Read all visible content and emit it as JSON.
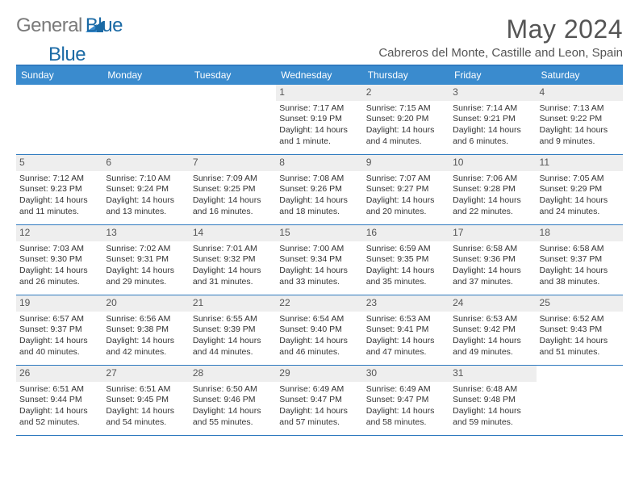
{
  "brand": {
    "part1": "General",
    "part2": "Blue"
  },
  "title": "May 2024",
  "location": "Cabreros del Monte, Castille and Leon, Spain",
  "colors": {
    "headerBar": "#3a8bce",
    "accent": "#2f7abf",
    "dayNumBg": "#eeeeee",
    "logoGray": "#7a7a7a",
    "logoBlue": "#1b6aa5"
  },
  "weekdays": [
    "Sunday",
    "Monday",
    "Tuesday",
    "Wednesday",
    "Thursday",
    "Friday",
    "Saturday"
  ],
  "weeks": [
    [
      {
        "n": "",
        "sr": "",
        "ss": "",
        "dl": ""
      },
      {
        "n": "",
        "sr": "",
        "ss": "",
        "dl": ""
      },
      {
        "n": "",
        "sr": "",
        "ss": "",
        "dl": ""
      },
      {
        "n": "1",
        "sr": "Sunrise: 7:17 AM",
        "ss": "Sunset: 9:19 PM",
        "dl": "Daylight: 14 hours and 1 minute."
      },
      {
        "n": "2",
        "sr": "Sunrise: 7:15 AM",
        "ss": "Sunset: 9:20 PM",
        "dl": "Daylight: 14 hours and 4 minutes."
      },
      {
        "n": "3",
        "sr": "Sunrise: 7:14 AM",
        "ss": "Sunset: 9:21 PM",
        "dl": "Daylight: 14 hours and 6 minutes."
      },
      {
        "n": "4",
        "sr": "Sunrise: 7:13 AM",
        "ss": "Sunset: 9:22 PM",
        "dl": "Daylight: 14 hours and 9 minutes."
      }
    ],
    [
      {
        "n": "5",
        "sr": "Sunrise: 7:12 AM",
        "ss": "Sunset: 9:23 PM",
        "dl": "Daylight: 14 hours and 11 minutes."
      },
      {
        "n": "6",
        "sr": "Sunrise: 7:10 AM",
        "ss": "Sunset: 9:24 PM",
        "dl": "Daylight: 14 hours and 13 minutes."
      },
      {
        "n": "7",
        "sr": "Sunrise: 7:09 AM",
        "ss": "Sunset: 9:25 PM",
        "dl": "Daylight: 14 hours and 16 minutes."
      },
      {
        "n": "8",
        "sr": "Sunrise: 7:08 AM",
        "ss": "Sunset: 9:26 PM",
        "dl": "Daylight: 14 hours and 18 minutes."
      },
      {
        "n": "9",
        "sr": "Sunrise: 7:07 AM",
        "ss": "Sunset: 9:27 PM",
        "dl": "Daylight: 14 hours and 20 minutes."
      },
      {
        "n": "10",
        "sr": "Sunrise: 7:06 AM",
        "ss": "Sunset: 9:28 PM",
        "dl": "Daylight: 14 hours and 22 minutes."
      },
      {
        "n": "11",
        "sr": "Sunrise: 7:05 AM",
        "ss": "Sunset: 9:29 PM",
        "dl": "Daylight: 14 hours and 24 minutes."
      }
    ],
    [
      {
        "n": "12",
        "sr": "Sunrise: 7:03 AM",
        "ss": "Sunset: 9:30 PM",
        "dl": "Daylight: 14 hours and 26 minutes."
      },
      {
        "n": "13",
        "sr": "Sunrise: 7:02 AM",
        "ss": "Sunset: 9:31 PM",
        "dl": "Daylight: 14 hours and 29 minutes."
      },
      {
        "n": "14",
        "sr": "Sunrise: 7:01 AM",
        "ss": "Sunset: 9:32 PM",
        "dl": "Daylight: 14 hours and 31 minutes."
      },
      {
        "n": "15",
        "sr": "Sunrise: 7:00 AM",
        "ss": "Sunset: 9:34 PM",
        "dl": "Daylight: 14 hours and 33 minutes."
      },
      {
        "n": "16",
        "sr": "Sunrise: 6:59 AM",
        "ss": "Sunset: 9:35 PM",
        "dl": "Daylight: 14 hours and 35 minutes."
      },
      {
        "n": "17",
        "sr": "Sunrise: 6:58 AM",
        "ss": "Sunset: 9:36 PM",
        "dl": "Daylight: 14 hours and 37 minutes."
      },
      {
        "n": "18",
        "sr": "Sunrise: 6:58 AM",
        "ss": "Sunset: 9:37 PM",
        "dl": "Daylight: 14 hours and 38 minutes."
      }
    ],
    [
      {
        "n": "19",
        "sr": "Sunrise: 6:57 AM",
        "ss": "Sunset: 9:37 PM",
        "dl": "Daylight: 14 hours and 40 minutes."
      },
      {
        "n": "20",
        "sr": "Sunrise: 6:56 AM",
        "ss": "Sunset: 9:38 PM",
        "dl": "Daylight: 14 hours and 42 minutes."
      },
      {
        "n": "21",
        "sr": "Sunrise: 6:55 AM",
        "ss": "Sunset: 9:39 PM",
        "dl": "Daylight: 14 hours and 44 minutes."
      },
      {
        "n": "22",
        "sr": "Sunrise: 6:54 AM",
        "ss": "Sunset: 9:40 PM",
        "dl": "Daylight: 14 hours and 46 minutes."
      },
      {
        "n": "23",
        "sr": "Sunrise: 6:53 AM",
        "ss": "Sunset: 9:41 PM",
        "dl": "Daylight: 14 hours and 47 minutes."
      },
      {
        "n": "24",
        "sr": "Sunrise: 6:53 AM",
        "ss": "Sunset: 9:42 PM",
        "dl": "Daylight: 14 hours and 49 minutes."
      },
      {
        "n": "25",
        "sr": "Sunrise: 6:52 AM",
        "ss": "Sunset: 9:43 PM",
        "dl": "Daylight: 14 hours and 51 minutes."
      }
    ],
    [
      {
        "n": "26",
        "sr": "Sunrise: 6:51 AM",
        "ss": "Sunset: 9:44 PM",
        "dl": "Daylight: 14 hours and 52 minutes."
      },
      {
        "n": "27",
        "sr": "Sunrise: 6:51 AM",
        "ss": "Sunset: 9:45 PM",
        "dl": "Daylight: 14 hours and 54 minutes."
      },
      {
        "n": "28",
        "sr": "Sunrise: 6:50 AM",
        "ss": "Sunset: 9:46 PM",
        "dl": "Daylight: 14 hours and 55 minutes."
      },
      {
        "n": "29",
        "sr": "Sunrise: 6:49 AM",
        "ss": "Sunset: 9:47 PM",
        "dl": "Daylight: 14 hours and 57 minutes."
      },
      {
        "n": "30",
        "sr": "Sunrise: 6:49 AM",
        "ss": "Sunset: 9:47 PM",
        "dl": "Daylight: 14 hours and 58 minutes."
      },
      {
        "n": "31",
        "sr": "Sunrise: 6:48 AM",
        "ss": "Sunset: 9:48 PM",
        "dl": "Daylight: 14 hours and 59 minutes."
      },
      {
        "n": "",
        "sr": "",
        "ss": "",
        "dl": ""
      }
    ]
  ]
}
